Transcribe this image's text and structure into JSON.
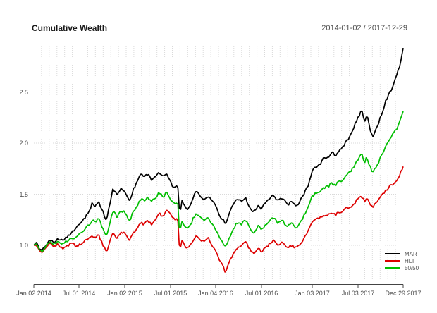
{
  "header": {
    "title": "Cumulative Wealth",
    "date_range": "2014-01-02 / 2017-12-29"
  },
  "colors": {
    "background": "#ffffff",
    "grid": "#d9d9d9",
    "axis": "#444444",
    "tick_text": "#4d4d4d",
    "title_text": "#1a1a1a"
  },
  "chart_data": {
    "type": "line",
    "title": "Cumulative Wealth",
    "subtitle": "2014-01-02 / 2017-12-29",
    "x_unit": "months since 2014-01-02",
    "xlim": [
      0,
      48
    ],
    "ylim": [
      0.62,
      2.97
    ],
    "grid": "dotted, monthly vertical + horizontal at y ticks",
    "legend_position": "bottom-right",
    "y_ticks": [
      1.0,
      1.5,
      2.0,
      2.5
    ],
    "x_ticks": [
      {
        "label": "Jan 02 2014",
        "m": 0
      },
      {
        "label": "Jul 01 2014",
        "m": 5.86
      },
      {
        "label": "Jan 02 2015",
        "m": 11.82
      },
      {
        "label": "Jul 01 2015",
        "m": 17.77
      },
      {
        "label": "Jan 04 2016",
        "m": 23.63
      },
      {
        "label": "Jul 01 2016",
        "m": 29.59
      },
      {
        "label": "Jan 03 2017",
        "m": 36.18
      },
      {
        "label": "Jul 03 2017",
        "m": 42.14
      },
      {
        "label": "Dec 29 2017",
        "m": 48
      }
    ],
    "series": [
      {
        "name": "MAR",
        "color": "#000000",
        "points": [
          [
            0,
            1.0
          ],
          [
            0.35,
            1.03
          ],
          [
            0.75,
            0.96
          ],
          [
            1.1,
            0.95
          ],
          [
            1.6,
            1.01
          ],
          [
            2.1,
            1.05
          ],
          [
            2.6,
            1.03
          ],
          [
            3.1,
            1.07
          ],
          [
            3.7,
            1.05
          ],
          [
            4.2,
            1.08
          ],
          [
            5.0,
            1.13
          ],
          [
            5.5,
            1.16
          ],
          [
            5.86,
            1.21
          ],
          [
            6.6,
            1.27
          ],
          [
            7.1,
            1.33
          ],
          [
            7.6,
            1.41
          ],
          [
            8.0,
            1.38
          ],
          [
            8.4,
            1.43
          ],
          [
            8.9,
            1.34
          ],
          [
            9.45,
            1.24
          ],
          [
            10.0,
            1.45
          ],
          [
            10.3,
            1.56
          ],
          [
            10.8,
            1.49
          ],
          [
            11.3,
            1.55
          ],
          [
            11.8,
            1.54
          ],
          [
            12.4,
            1.43
          ],
          [
            13.0,
            1.56
          ],
          [
            13.5,
            1.63
          ],
          [
            13.9,
            1.71
          ],
          [
            14.3,
            1.66
          ],
          [
            14.8,
            1.7
          ],
          [
            15.3,
            1.63
          ],
          [
            15.8,
            1.68
          ],
          [
            16.3,
            1.72
          ],
          [
            16.8,
            1.66
          ],
          [
            17.3,
            1.71
          ],
          [
            17.77,
            1.61
          ],
          [
            18.3,
            1.56
          ],
          [
            18.7,
            1.6
          ],
          [
            18.96,
            1.28
          ],
          [
            19.2,
            1.44
          ],
          [
            19.6,
            1.38
          ],
          [
            20.0,
            1.35
          ],
          [
            20.5,
            1.42
          ],
          [
            20.8,
            1.5
          ],
          [
            21.2,
            1.53
          ],
          [
            21.7,
            1.47
          ],
          [
            22.2,
            1.45
          ],
          [
            22.6,
            1.49
          ],
          [
            23.1,
            1.43
          ],
          [
            23.63,
            1.4
          ],
          [
            24.2,
            1.28
          ],
          [
            24.6,
            1.25
          ],
          [
            24.9,
            1.19
          ],
          [
            25.5,
            1.33
          ],
          [
            26.3,
            1.45
          ],
          [
            27.0,
            1.43
          ],
          [
            27.5,
            1.47
          ],
          [
            28.2,
            1.35
          ],
          [
            28.7,
            1.33
          ],
          [
            29.2,
            1.4
          ],
          [
            29.59,
            1.35
          ],
          [
            30.0,
            1.42
          ],
          [
            30.6,
            1.46
          ],
          [
            31.1,
            1.49
          ],
          [
            31.7,
            1.44
          ],
          [
            32.3,
            1.46
          ],
          [
            32.9,
            1.4
          ],
          [
            33.5,
            1.42
          ],
          [
            34.1,
            1.38
          ],
          [
            34.6,
            1.43
          ],
          [
            35.2,
            1.52
          ],
          [
            35.7,
            1.6
          ],
          [
            36.18,
            1.73
          ],
          [
            36.7,
            1.76
          ],
          [
            37.2,
            1.8
          ],
          [
            37.7,
            1.85
          ],
          [
            38.2,
            1.86
          ],
          [
            38.7,
            1.91
          ],
          [
            39.2,
            1.88
          ],
          [
            39.7,
            1.93
          ],
          [
            40.2,
            1.97
          ],
          [
            40.7,
            2.03
          ],
          [
            41.2,
            2.09
          ],
          [
            41.7,
            2.17
          ],
          [
            42.14,
            2.25
          ],
          [
            42.6,
            2.33
          ],
          [
            43.0,
            2.2
          ],
          [
            43.3,
            2.27
          ],
          [
            43.7,
            2.13
          ],
          [
            44.1,
            2.07
          ],
          [
            44.6,
            2.16
          ],
          [
            45.0,
            2.24
          ],
          [
            45.4,
            2.33
          ],
          [
            45.8,
            2.42
          ],
          [
            46.2,
            2.5
          ],
          [
            46.6,
            2.55
          ],
          [
            47.0,
            2.63
          ],
          [
            47.4,
            2.72
          ],
          [
            47.7,
            2.8
          ],
          [
            48,
            2.93
          ]
        ]
      },
      {
        "name": "HLT",
        "color": "#dd0000",
        "points": [
          [
            0,
            1.0
          ],
          [
            0.35,
            1.0
          ],
          [
            0.75,
            0.95
          ],
          [
            1.1,
            0.93
          ],
          [
            1.6,
            0.99
          ],
          [
            2.1,
            1.02
          ],
          [
            2.6,
            0.99
          ],
          [
            3.1,
            1.01
          ],
          [
            3.7,
            0.97
          ],
          [
            4.2,
            0.99
          ],
          [
            5.0,
            1.02
          ],
          [
            5.5,
            0.99
          ],
          [
            5.86,
            1.0
          ],
          [
            6.6,
            1.04
          ],
          [
            7.1,
            1.06
          ],
          [
            7.6,
            1.1
          ],
          [
            8.0,
            1.07
          ],
          [
            8.4,
            1.1
          ],
          [
            8.9,
            1.02
          ],
          [
            9.45,
            0.93
          ],
          [
            10.0,
            1.06
          ],
          [
            10.3,
            1.12
          ],
          [
            10.8,
            1.07
          ],
          [
            11.3,
            1.12
          ],
          [
            11.8,
            1.12
          ],
          [
            12.4,
            1.04
          ],
          [
            13.0,
            1.13
          ],
          [
            13.5,
            1.17
          ],
          [
            13.9,
            1.22
          ],
          [
            14.3,
            1.2
          ],
          [
            14.8,
            1.24
          ],
          [
            15.3,
            1.21
          ],
          [
            15.8,
            1.26
          ],
          [
            16.3,
            1.31
          ],
          [
            16.8,
            1.28
          ],
          [
            17.3,
            1.36
          ],
          [
            17.77,
            1.3
          ],
          [
            18.3,
            1.25
          ],
          [
            18.7,
            1.27
          ],
          [
            18.96,
            0.92
          ],
          [
            19.2,
            1.06
          ],
          [
            19.6,
            1.0
          ],
          [
            20.0,
            0.97
          ],
          [
            20.5,
            1.02
          ],
          [
            20.8,
            1.07
          ],
          [
            21.2,
            1.1
          ],
          [
            21.7,
            1.05
          ],
          [
            22.2,
            1.04
          ],
          [
            22.6,
            1.08
          ],
          [
            23.1,
            1.0
          ],
          [
            23.63,
            0.94
          ],
          [
            24.2,
            0.85
          ],
          [
            24.6,
            0.8
          ],
          [
            24.9,
            0.73
          ],
          [
            25.5,
            0.85
          ],
          [
            26.3,
            0.97
          ],
          [
            27.0,
            0.99
          ],
          [
            27.5,
            1.03
          ],
          [
            28.2,
            0.95
          ],
          [
            28.7,
            0.92
          ],
          [
            29.2,
            0.98
          ],
          [
            29.59,
            0.93
          ],
          [
            30.0,
            0.97
          ],
          [
            30.6,
            1.01
          ],
          [
            31.1,
            1.05
          ],
          [
            31.7,
            1.0
          ],
          [
            32.3,
            1.03
          ],
          [
            32.9,
            0.98
          ],
          [
            33.5,
            1.0
          ],
          [
            34.1,
            0.97
          ],
          [
            34.6,
            1.01
          ],
          [
            35.2,
            1.08
          ],
          [
            35.7,
            1.15
          ],
          [
            36.18,
            1.22
          ],
          [
            36.7,
            1.25
          ],
          [
            37.2,
            1.27
          ],
          [
            37.7,
            1.29
          ],
          [
            38.2,
            1.29
          ],
          [
            38.7,
            1.32
          ],
          [
            39.2,
            1.3
          ],
          [
            39.7,
            1.32
          ],
          [
            40.2,
            1.34
          ],
          [
            40.7,
            1.36
          ],
          [
            41.2,
            1.38
          ],
          [
            41.7,
            1.42
          ],
          [
            42.14,
            1.45
          ],
          [
            42.6,
            1.48
          ],
          [
            43.0,
            1.43
          ],
          [
            43.3,
            1.46
          ],
          [
            43.7,
            1.4
          ],
          [
            44.1,
            1.38
          ],
          [
            44.6,
            1.43
          ],
          [
            45.0,
            1.47
          ],
          [
            45.4,
            1.51
          ],
          [
            45.8,
            1.54
          ],
          [
            46.2,
            1.58
          ],
          [
            46.6,
            1.6
          ],
          [
            47.0,
            1.63
          ],
          [
            47.4,
            1.67
          ],
          [
            47.7,
            1.71
          ],
          [
            48,
            1.77
          ]
        ]
      },
      {
        "name": "50/50",
        "color": "#00be00",
        "points": [
          [
            0,
            1.0
          ],
          [
            0.35,
            1.015
          ],
          [
            0.75,
            0.955
          ],
          [
            1.1,
            0.94
          ],
          [
            1.6,
            1.0
          ],
          [
            2.1,
            1.035
          ],
          [
            2.6,
            1.01
          ],
          [
            3.1,
            1.04
          ],
          [
            3.7,
            1.01
          ],
          [
            4.2,
            1.035
          ],
          [
            5.0,
            1.075
          ],
          [
            5.5,
            1.075
          ],
          [
            5.86,
            1.1
          ],
          [
            6.6,
            1.155
          ],
          [
            7.1,
            1.195
          ],
          [
            7.6,
            1.25
          ],
          [
            8.0,
            1.22
          ],
          [
            8.4,
            1.26
          ],
          [
            8.9,
            1.18
          ],
          [
            9.45,
            1.08
          ],
          [
            10.0,
            1.25
          ],
          [
            10.3,
            1.33
          ],
          [
            10.8,
            1.28
          ],
          [
            11.3,
            1.33
          ],
          [
            11.8,
            1.33
          ],
          [
            12.4,
            1.23
          ],
          [
            13.0,
            1.34
          ],
          [
            13.5,
            1.4
          ],
          [
            13.9,
            1.46
          ],
          [
            14.3,
            1.43
          ],
          [
            14.8,
            1.47
          ],
          [
            15.3,
            1.42
          ],
          [
            15.8,
            1.47
          ],
          [
            16.3,
            1.51
          ],
          [
            16.8,
            1.47
          ],
          [
            17.3,
            1.53
          ],
          [
            17.77,
            1.45
          ],
          [
            18.3,
            1.4
          ],
          [
            18.7,
            1.43
          ],
          [
            18.96,
            1.1
          ],
          [
            19.2,
            1.25
          ],
          [
            19.6,
            1.19
          ],
          [
            20.0,
            1.16
          ],
          [
            20.5,
            1.22
          ],
          [
            20.8,
            1.28
          ],
          [
            21.2,
            1.31
          ],
          [
            21.7,
            1.26
          ],
          [
            22.2,
            1.24
          ],
          [
            22.6,
            1.28
          ],
          [
            23.1,
            1.21
          ],
          [
            23.63,
            1.16
          ],
          [
            24.2,
            1.06
          ],
          [
            24.6,
            1.02
          ],
          [
            24.9,
            0.99
          ],
          [
            25.5,
            1.09
          ],
          [
            26.3,
            1.21
          ],
          [
            27.0,
            1.21
          ],
          [
            27.5,
            1.25
          ],
          [
            28.2,
            1.15
          ],
          [
            28.7,
            1.12
          ],
          [
            29.2,
            1.19
          ],
          [
            29.59,
            1.14
          ],
          [
            30.0,
            1.19
          ],
          [
            30.6,
            1.23
          ],
          [
            31.1,
            1.27
          ],
          [
            31.7,
            1.22
          ],
          [
            32.3,
            1.24
          ],
          [
            32.9,
            1.19
          ],
          [
            33.5,
            1.21
          ],
          [
            34.1,
            1.17
          ],
          [
            34.6,
            1.22
          ],
          [
            35.2,
            1.3
          ],
          [
            35.7,
            1.37
          ],
          [
            36.18,
            1.48
          ],
          [
            36.7,
            1.51
          ],
          [
            37.2,
            1.53
          ],
          [
            37.7,
            1.57
          ],
          [
            38.2,
            1.57
          ],
          [
            38.7,
            1.61
          ],
          [
            39.2,
            1.59
          ],
          [
            39.7,
            1.62
          ],
          [
            40.2,
            1.65
          ],
          [
            40.7,
            1.69
          ],
          [
            41.2,
            1.73
          ],
          [
            41.7,
            1.79
          ],
          [
            42.14,
            1.85
          ],
          [
            42.6,
            1.9
          ],
          [
            43.0,
            1.81
          ],
          [
            43.3,
            1.86
          ],
          [
            43.7,
            1.76
          ],
          [
            44.1,
            1.72
          ],
          [
            44.6,
            1.79
          ],
          [
            45.0,
            1.85
          ],
          [
            45.4,
            1.91
          ],
          [
            45.8,
            1.97
          ],
          [
            46.2,
            2.03
          ],
          [
            46.6,
            2.07
          ],
          [
            47.0,
            2.12
          ],
          [
            47.4,
            2.18
          ],
          [
            47.7,
            2.24
          ],
          [
            48,
            2.31
          ]
        ]
      }
    ]
  }
}
